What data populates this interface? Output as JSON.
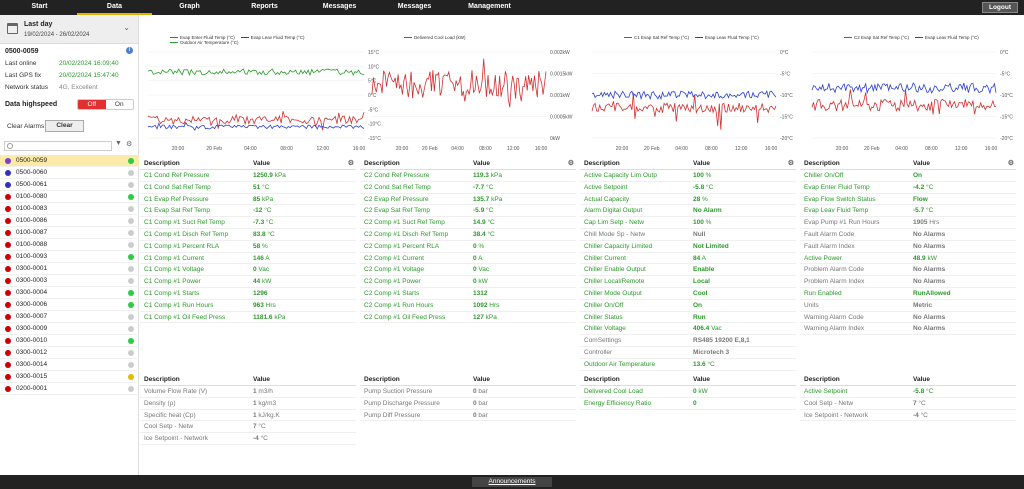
{
  "nav": {
    "tabs": [
      "Start",
      "Data",
      "Graph",
      "Reports",
      "Messages",
      "Messages",
      "Management"
    ],
    "logout": "Logout"
  },
  "sidebar": {
    "period_title": "Last day",
    "period_range": "19/02/2024 - 26/02/2024",
    "device": "0500-0059",
    "last_online_label": "Last online",
    "last_online": "20/02/2024 16:09:40",
    "last_gps_label": "Last GPS fix",
    "last_gps": "20/02/2024 15:47:40",
    "network_label": "Network status",
    "network": "4G, Excellent",
    "highspeed_label": "Data highspeed",
    "off": "Off",
    "on": "On",
    "clear_alarms_label": "Clear Alarms",
    "clear_btn": "Clear",
    "devices": [
      {
        "name": "0500-0059",
        "ball": "#7a3fd0",
        "status": "#2ecc40",
        "sel": true
      },
      {
        "name": "0500-0060",
        "ball": "#3030c0",
        "status": "#ccc"
      },
      {
        "name": "0500-0061",
        "ball": "#3030c0",
        "status": "#ccc"
      },
      {
        "name": "0100-0080",
        "ball": "#c00",
        "status": "#2ecc40"
      },
      {
        "name": "0100-0083",
        "ball": "#c00",
        "status": "#ccc"
      },
      {
        "name": "0100-0086",
        "ball": "#c00",
        "status": "#ccc"
      },
      {
        "name": "0100-0087",
        "ball": "#c00",
        "status": "#ccc"
      },
      {
        "name": "0100-0088",
        "ball": "#c00",
        "status": "#ccc"
      },
      {
        "name": "0100-0093",
        "ball": "#c00",
        "status": "#2ecc40"
      },
      {
        "name": "0300-0001",
        "ball": "#c00",
        "status": "#ccc"
      },
      {
        "name": "0300-0003",
        "ball": "#c00",
        "status": "#ccc"
      },
      {
        "name": "0300-0004",
        "ball": "#c00",
        "status": "#2ecc40"
      },
      {
        "name": "0300-0006",
        "ball": "#c00",
        "status": "#2ecc40"
      },
      {
        "name": "0300-0007",
        "ball": "#c00",
        "status": "#ccc"
      },
      {
        "name": "0300-0009",
        "ball": "#c00",
        "status": "#ccc"
      },
      {
        "name": "0300-0010",
        "ball": "#c00",
        "status": "#2ecc40"
      },
      {
        "name": "0300-0012",
        "ball": "#c00",
        "status": "#ccc"
      },
      {
        "name": "0300-0014",
        "ball": "#c00",
        "status": "#ccc"
      },
      {
        "name": "0300-0015",
        "ball": "#c00",
        "status": "#e6b800"
      },
      {
        "name": "0200-0001",
        "ball": "#c00",
        "status": "#ccc"
      }
    ]
  },
  "charts": [
    {
      "legend": [
        {
          "t": "Evap Enter Fluid Temp (°C)",
          "c": "#d03030"
        },
        {
          "t": "Evap Leav Fluid Temp (°C)",
          "c": "#2a3fd0"
        },
        {
          "t": "Outdoor Air Temperature (°C)",
          "c": "#2a9a2a"
        }
      ],
      "yticks": [
        "15°C",
        "10°C",
        "5°C",
        "0°C",
        "-5°C",
        "-10°C",
        "-15°C"
      ],
      "xticks": [
        "20:00",
        "20 Feb",
        "04:00",
        "08:00",
        "12:00",
        "16:00"
      ]
    },
    {
      "legend": [
        {
          "t": "Delivered Cool Load (kW)",
          "c": "#d03030"
        }
      ],
      "yticks": [
        "0.002kW",
        "0.0015kW",
        "0.001kW",
        "0.0005kW",
        "0kW"
      ],
      "xticks": [
        "20:00",
        "20 Feb",
        "04:00",
        "08:00",
        "12:00",
        "16:00"
      ]
    },
    {
      "legend": [
        {
          "t": "C1 Evap Sat Ref Temp (°C)",
          "c": "#d03030"
        },
        {
          "t": "Evap Leav Fluid Temp (°C)",
          "c": "#2a3fd0"
        }
      ],
      "yticks": [
        "0°C",
        "-5°C",
        "-10°C",
        "-15°C",
        "-20°C"
      ],
      "xticks": [
        "20:00",
        "20 Feb",
        "04:00",
        "08:00",
        "12:00",
        "16:00"
      ]
    },
    {
      "legend": [
        {
          "t": "C2 Evap Sat Ref Temp (°C)",
          "c": "#d03030"
        },
        {
          "t": "Evap Leav Fluid Temp (°C)",
          "c": "#2a3fd0"
        }
      ],
      "yticks": [
        "0°C",
        "-5°C",
        "-10°C",
        "-15°C",
        "-20°C"
      ],
      "xticks": [
        "20:00",
        "20 Feb",
        "04:00",
        "08:00",
        "12:00",
        "16:00"
      ]
    }
  ],
  "tables_top": [
    {
      "h1": "Description",
      "h2": "Value",
      "rows": [
        [
          "C1 Cond Ref Pressure",
          "1250.9",
          "kPa",
          "g"
        ],
        [
          "C1 Cond Sat Ref Temp",
          "51",
          "°C",
          "g"
        ],
        [
          "C1 Evap Ref Pressure",
          "85",
          "kPa",
          "g"
        ],
        [
          "C1 Evap Sat Ref Temp",
          "-12",
          "°C",
          "g"
        ],
        [
          "C1 Comp #1 Suct Ref Temp",
          "-7.3",
          "°C",
          "g"
        ],
        [
          "C1 Comp #1 Disch Ref Temp",
          "83.8",
          "°C",
          "g"
        ],
        [
          "C1 Comp #1 Percent RLA",
          "58",
          "%",
          "g"
        ],
        [
          "C1 Comp #1 Current",
          "146",
          "A",
          "g"
        ],
        [
          "C1 Comp #1 Voltage",
          "0",
          "Vac",
          "g"
        ],
        [
          "C1 Comp #1 Power",
          "44",
          "kW",
          "g"
        ],
        [
          "C1 Comp #1 Starts",
          "1296",
          "",
          "g"
        ],
        [
          "C1 Comp #1 Run Hours",
          "963",
          "Hrs",
          "g"
        ],
        [
          "C1 Comp #1 Oil Feed Press",
          "1181.6",
          "kPa",
          "g"
        ]
      ]
    },
    {
      "h1": "Description",
      "h2": "Value",
      "rows": [
        [
          "C2 Cond Ref Pressure",
          "119.3",
          "kPa",
          "g"
        ],
        [
          "C2 Cond Sat Ref Temp",
          "-7.7",
          "°C",
          "g"
        ],
        [
          "C2 Evap Ref Pressure",
          "135.7",
          "kPa",
          "g"
        ],
        [
          "C2 Evap Sat Ref Temp",
          "-5.9",
          "°C",
          "g"
        ],
        [
          "C2 Comp #1 Suct Ref Temp",
          "14.9",
          "°C",
          "g"
        ],
        [
          "C2 Comp #1 Disch Ref Temp",
          "38.4",
          "°C",
          "g"
        ],
        [
          "C2 Comp #1 Percent RLA",
          "0",
          "%",
          "g"
        ],
        [
          "C2 Comp #1 Current",
          "0",
          "A",
          "g"
        ],
        [
          "C2 Comp #1 Voltage",
          "0",
          "Vac",
          "g"
        ],
        [
          "C2 Comp #1 Power",
          "0",
          "kW",
          "g"
        ],
        [
          "C2 Comp #1 Starts",
          "1312",
          "",
          "g"
        ],
        [
          "C2 Comp #1 Run Hours",
          "1092",
          "Hrs",
          "g"
        ],
        [
          "C2 Comp #1 Oil Feed Press",
          "127",
          "kPa",
          "g"
        ]
      ]
    },
    {
      "h1": "Description",
      "h2": "Value",
      "rows": [
        [
          "Active Capacity Lim Outp",
          "100",
          "%",
          "g"
        ],
        [
          "Active Setpoint",
          "-5.8",
          "°C",
          "g"
        ],
        [
          "Actual Capacity",
          "28",
          "%",
          "g"
        ],
        [
          "Alarm Digital Output",
          "No Alarm",
          "",
          "g"
        ],
        [
          "Cap Lim Setp - Netw",
          "100",
          "%",
          "g"
        ],
        [
          "Chill Mode Sp - Netw",
          "Null",
          "",
          "gr"
        ],
        [
          "Chiller Capacity Limited",
          "Not Limited",
          "",
          "g"
        ],
        [
          "Chiller Current",
          "84",
          "A",
          "g"
        ],
        [
          "Chiller Enable Output",
          "Enable",
          "",
          "g"
        ],
        [
          "Chiller Local/Remote",
          "Local",
          "",
          "g"
        ],
        [
          "Chiller Mode Output",
          "Cool",
          "",
          "g"
        ],
        [
          "Chiller On/Off",
          "On",
          "",
          "g"
        ],
        [
          "Chiller Status",
          "Run",
          "",
          "g"
        ],
        [
          "Chiller Voltage",
          "406.4",
          "Vac",
          "g"
        ],
        [
          "ComSettings",
          "RS485 19200 E,8,1",
          "",
          "gr"
        ],
        [
          "Controller",
          "Microtech 3",
          "",
          "gr"
        ],
        [
          "Outdoor Air Temperature",
          "13.6",
          "°C",
          "g"
        ]
      ]
    },
    {
      "h1": "Description",
      "h2": "Value",
      "rows": [
        [
          "Chiller On/Off",
          "On",
          "",
          "g"
        ],
        [
          "Evap Enter Fluid Temp",
          "-4.2",
          "°C",
          "g"
        ],
        [
          "Evap Flow Switch Status",
          "Flow",
          "",
          "g"
        ],
        [
          "Evap Leav Fluid Temp",
          "-5.7",
          "°C",
          "g"
        ],
        [
          "Evap Pump #1 Run Hours",
          "1905",
          "Hrs",
          "gr"
        ],
        [
          "Fault Alarm Code",
          "No Alarms",
          "",
          "gr"
        ],
        [
          "Fault Alarm Index",
          "No Alarms",
          "",
          "gr"
        ],
        [
          "Active Power",
          "48.9",
          "kW",
          "g"
        ],
        [
          "Problem Alarm Code",
          "No Alarms",
          "",
          "gr"
        ],
        [
          "Problem Alarm Index",
          "No Alarms",
          "",
          "gr"
        ],
        [
          "Run Enabled",
          "RunAllowed",
          "",
          "g"
        ],
        [
          "Units",
          "Metric",
          "",
          "gr"
        ],
        [
          "Warning Alarm Code",
          "No Alarms",
          "",
          "gr"
        ],
        [
          "Warning Alarm Index",
          "No Alarms",
          "",
          "gr"
        ]
      ]
    }
  ],
  "tables_bottom": [
    {
      "h1": "Description",
      "h2": "Value",
      "rows": [
        [
          "Volume Flow Rate (V)",
          "1",
          "m3/h",
          "gr"
        ],
        [
          "Density (ρ)",
          "1",
          "kg/m3",
          "gr"
        ],
        [
          "Specific heat (Cp)",
          "1",
          "kJ/kg.K",
          "gr"
        ],
        [
          "Cool Setp - Netw",
          "7",
          "°C",
          "gr"
        ],
        [
          "Ice Setpoint - Network",
          "-4",
          "°C",
          "gr"
        ]
      ]
    },
    {
      "h1": "Description",
      "h2": "Value",
      "rows": [
        [
          "Pump Suction Pressure",
          "0",
          "bar",
          "gr"
        ],
        [
          "Pump Discharge Pressure",
          "0",
          "bar",
          "gr"
        ],
        [
          "Pump Diff Pressure",
          "0",
          "bar",
          "gr"
        ]
      ]
    },
    {
      "h1": "Description",
      "h2": "Value",
      "rows": [
        [
          "Delivered Cool Load",
          "0",
          "kW",
          "g"
        ],
        [
          "Energy Efficiency Ratio",
          "0",
          "",
          "g"
        ]
      ]
    },
    {
      "h1": "Description",
      "h2": "Value",
      "rows": [
        [
          "Active Setpoint",
          "-5.8",
          "°C",
          "g"
        ],
        [
          "Cool Setp - Netw",
          "7",
          "°C",
          "gr"
        ],
        [
          "Ice Setpoint - Network",
          "-4",
          "°C",
          "gr"
        ]
      ]
    }
  ],
  "footer": {
    "announcements": "Announcements"
  }
}
